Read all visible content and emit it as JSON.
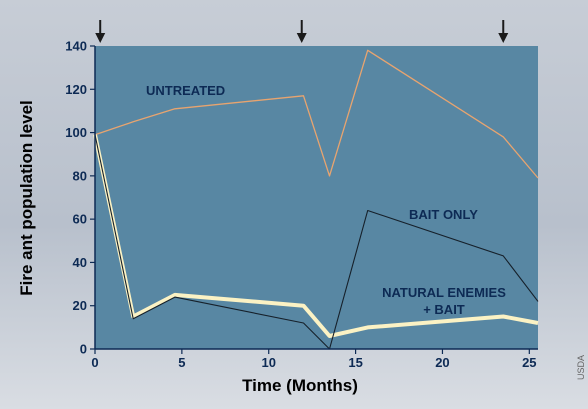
{
  "chart_data": {
    "type": "line",
    "xlabel": "Time (Months)",
    "ylabel": "Fire ant population level",
    "xlim": [
      0,
      25.5
    ],
    "ylim": [
      0,
      140
    ],
    "xticks": [
      0,
      5,
      10,
      15,
      20,
      25
    ],
    "yticks": [
      0,
      20,
      40,
      60,
      80,
      100,
      120,
      140
    ],
    "bait_applications_months": [
      0.3,
      11.9,
      23.5
    ],
    "credit": "USDA",
    "colors": {
      "plot_background": "#5887a3",
      "untreated": "#e8a46f",
      "bait_only": "#16202a",
      "natural_enemies_bait": "#fbf2c4",
      "axis": "#0d2a54"
    },
    "series": [
      {
        "name": "UNTREATED",
        "points": [
          [
            0,
            99
          ],
          [
            2.2,
            105
          ],
          [
            4.6,
            111
          ],
          [
            12,
            117
          ],
          [
            13.5,
            80
          ],
          [
            15.7,
            138
          ],
          [
            23.5,
            98
          ],
          [
            25.5,
            79
          ]
        ]
      },
      {
        "name": "BAIT ONLY",
        "points": [
          [
            0,
            99
          ],
          [
            2.2,
            14
          ],
          [
            4.6,
            24
          ],
          [
            12,
            12
          ],
          [
            13.5,
            0
          ],
          [
            15.7,
            64
          ],
          [
            23.5,
            43
          ],
          [
            25.5,
            22
          ]
        ]
      },
      {
        "name": [
          "NATURAL ENEMIES",
          "+ BAIT"
        ],
        "points": [
          [
            0,
            99
          ],
          [
            2.2,
            15
          ],
          [
            4.6,
            25
          ],
          [
            12,
            20
          ],
          [
            13.5,
            6
          ],
          [
            15.7,
            10
          ],
          [
            23.5,
            15
          ],
          [
            25.5,
            12
          ]
        ]
      }
    ]
  }
}
